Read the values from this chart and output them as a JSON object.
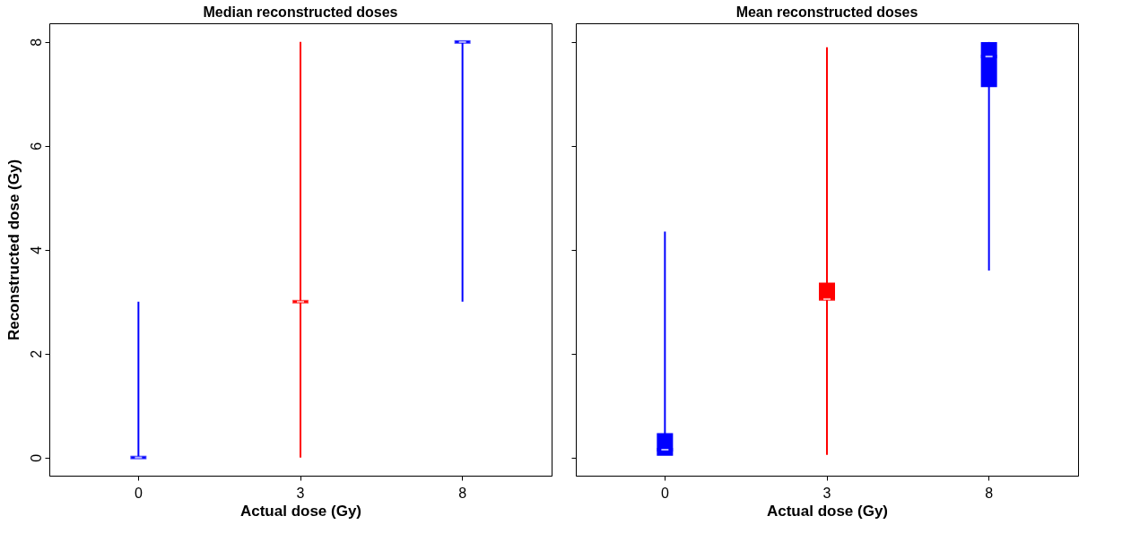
{
  "chart_data": [
    {
      "type": "box",
      "title": "Median reconstructed doses",
      "xlabel": "Actual dose (Gy)",
      "ylabel": "Reconstructed dose (Gy)",
      "categories": [
        "0",
        "3",
        "8"
      ],
      "colors": [
        "#0000ff",
        "#ff0000",
        "#0000ff"
      ],
      "ylim": [
        -0.35,
        8.36
      ],
      "yticks": [
        0,
        2,
        4,
        6,
        8
      ],
      "grid": false,
      "boxes": [
        {
          "low": 0,
          "q1": 0,
          "median": 0,
          "q3": 0,
          "high": 3
        },
        {
          "low": 0,
          "q1": 3,
          "median": 3,
          "q3": 3,
          "high": 8
        },
        {
          "low": 3,
          "q1": 8,
          "median": 8,
          "q3": 8,
          "high": 8
        }
      ]
    },
    {
      "type": "box",
      "title": "Mean reconstructed doses",
      "xlabel": "Actual dose (Gy)",
      "categories": [
        "0",
        "3",
        "8"
      ],
      "colors": [
        "#0000ff",
        "#ff0000",
        "#0000ff"
      ],
      "ylim": [
        -0.35,
        8.36
      ],
      "yticks": [
        0,
        2,
        4,
        6,
        8
      ],
      "grid": false,
      "tick_labels": "x",
      "boxes": [
        {
          "low": 0.05,
          "q1": 0.05,
          "median": 0.15,
          "q3": 0.45,
          "high": 4.35
        },
        {
          "low": 0.05,
          "q1": 3.05,
          "median": 3.05,
          "q3": 3.35,
          "high": 7.9
        },
        {
          "low": 3.6,
          "q1": 7.15,
          "median": 7.72,
          "q3": 7.98,
          "high": 8
        }
      ]
    }
  ]
}
